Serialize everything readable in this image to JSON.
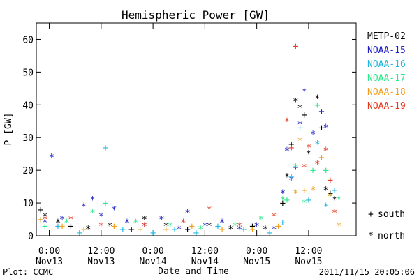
{
  "chart_data": {
    "type": "scatter",
    "title": "Hemispheric Power [GW]",
    "ylabel": "P [GW]",
    "xlabel": "Date and Time",
    "ylim": [
      0,
      65
    ],
    "xlim": [
      "2011-11-12T21:00",
      "2011-11-15T23:00"
    ],
    "y_ticks": [
      "0",
      "10",
      "20",
      "30",
      "40",
      "50",
      "60"
    ],
    "x_ticks": [
      {
        "x": "2011-11-13T00:00",
        "line1": "0:00",
        "line2": "Nov13"
      },
      {
        "x": "2011-11-13T12:00",
        "line1": "12:00",
        "line2": "Nov13"
      },
      {
        "x": "2011-11-14T00:00",
        "line1": "0:00",
        "line2": "Nov14"
      },
      {
        "x": "2011-11-14T12:00",
        "line1": "12:00",
        "line2": "Nov14"
      },
      {
        "x": "2011-11-15T00:00",
        "line1": "0:00",
        "line2": "Nov15"
      },
      {
        "x": "2011-11-15T12:00",
        "line1": "12:00",
        "line2": "Nov15"
      }
    ],
    "marker_legend": [
      {
        "symbol": "+",
        "label": "south"
      },
      {
        "symbol": "*",
        "label": "north"
      }
    ],
    "series": [
      {
        "name": "METP-02",
        "color": "#000000",
        "points": [
          [
            "2011-11-12T22:00",
            8,
            "+"
          ],
          [
            "2011-11-12T23:00",
            6,
            "*"
          ],
          [
            "2011-11-13T02:00",
            4,
            "*"
          ],
          [
            "2011-11-13T05:00",
            3,
            "+"
          ],
          [
            "2011-11-13T09:00",
            2,
            "*"
          ],
          [
            "2011-11-13T14:00",
            3,
            "*"
          ],
          [
            "2011-11-13T19:00",
            2,
            "+"
          ],
          [
            "2011-11-13T22:00",
            5,
            "*"
          ],
          [
            "2011-11-14T03:00",
            3,
            "*"
          ],
          [
            "2011-11-14T08:00",
            2,
            "+"
          ],
          [
            "2011-11-14T13:00",
            3,
            "*"
          ],
          [
            "2011-11-14T18:00",
            2,
            "*"
          ],
          [
            "2011-11-14T23:00",
            3,
            "+"
          ],
          [
            "2011-11-15T02:00",
            2,
            "*"
          ],
          [
            "2011-11-15T06:00",
            10,
            "+"
          ],
          [
            "2011-11-15T07:00",
            18,
            "*"
          ],
          [
            "2011-11-15T08:00",
            28,
            "+"
          ],
          [
            "2011-11-15T09:00",
            41,
            "*"
          ],
          [
            "2011-11-15T10:00",
            39,
            "*"
          ],
          [
            "2011-11-15T11:00",
            37,
            "+"
          ],
          [
            "2011-11-15T12:00",
            25,
            "*"
          ],
          [
            "2011-11-15T14:00",
            42,
            "*"
          ],
          [
            "2011-11-15T15:00",
            33,
            "+"
          ],
          [
            "2011-11-15T16:00",
            14,
            "*"
          ],
          [
            "2011-11-15T17:00",
            13,
            "+"
          ],
          [
            "2011-11-15T18:00",
            11,
            "*"
          ]
        ]
      },
      {
        "name": "NOAA-15",
        "color": "#1f1fc8",
        "points": [
          [
            "2011-11-12T23:00",
            4,
            "*"
          ],
          [
            "2011-11-13T00:30",
            24,
            "*"
          ],
          [
            "2011-11-13T03:00",
            5,
            "*"
          ],
          [
            "2011-11-13T08:00",
            9,
            "*"
          ],
          [
            "2011-11-13T10:00",
            11,
            "*"
          ],
          [
            "2011-11-13T12:00",
            6,
            "*"
          ],
          [
            "2011-11-13T15:00",
            8,
            "*"
          ],
          [
            "2011-11-13T18:00",
            4,
            "*"
          ],
          [
            "2011-11-13T22:00",
            3,
            "*"
          ],
          [
            "2011-11-14T02:00",
            5,
            "*"
          ],
          [
            "2011-11-14T06:00",
            2,
            "*"
          ],
          [
            "2011-11-14T08:00",
            7,
            "*"
          ],
          [
            "2011-11-14T12:00",
            3,
            "*"
          ],
          [
            "2011-11-14T16:00",
            4,
            "*"
          ],
          [
            "2011-11-14T20:00",
            2,
            "*"
          ],
          [
            "2011-11-15T00:00",
            3,
            "*"
          ],
          [
            "2011-11-15T04:00",
            2,
            "*"
          ],
          [
            "2011-11-15T06:00",
            13,
            "*"
          ],
          [
            "2011-11-15T07:00",
            26,
            "*"
          ],
          [
            "2011-11-15T08:00",
            17,
            "*"
          ],
          [
            "2011-11-15T09:00",
            21,
            "+"
          ],
          [
            "2011-11-15T10:00",
            34,
            "*"
          ],
          [
            "2011-11-15T11:00",
            44,
            "*"
          ],
          [
            "2011-11-15T13:00",
            31,
            "*"
          ],
          [
            "2011-11-15T15:00",
            38,
            "+"
          ],
          [
            "2011-11-15T16:00",
            33,
            "*"
          ]
        ]
      },
      {
        "name": "NOAA-16",
        "color": "#1fb8e0",
        "points": [
          [
            "2011-11-12T22:00",
            5,
            "+"
          ],
          [
            "2011-11-13T02:00",
            3,
            "+"
          ],
          [
            "2011-11-13T07:00",
            1,
            "+"
          ],
          [
            "2011-11-13T13:00",
            27,
            "+"
          ],
          [
            "2011-11-13T17:00",
            2,
            "+"
          ],
          [
            "2011-11-14T00:00",
            1,
            "+"
          ],
          [
            "2011-11-14T05:00",
            2,
            "+"
          ],
          [
            "2011-11-14T10:00",
            1,
            "+"
          ],
          [
            "2011-11-14T15:00",
            3,
            "+"
          ],
          [
            "2011-11-14T21:00",
            2,
            "+"
          ],
          [
            "2011-11-15T03:00",
            1,
            "+"
          ],
          [
            "2011-11-15T06:00",
            4,
            "+"
          ],
          [
            "2011-11-15T08:00",
            18,
            "+"
          ],
          [
            "2011-11-15T10:00",
            33,
            "+"
          ],
          [
            "2011-11-15T12:00",
            11,
            "+"
          ],
          [
            "2011-11-15T14:00",
            28,
            "*"
          ],
          [
            "2011-11-15T16:00",
            9,
            "*"
          ],
          [
            "2011-11-15T18:00",
            14,
            "+"
          ]
        ]
      },
      {
        "name": "NOAA-17",
        "color": "#2ee88a",
        "points": [
          [
            "2011-11-12T23:00",
            3,
            "+"
          ],
          [
            "2011-11-13T04:00",
            4,
            "*"
          ],
          [
            "2011-11-13T10:00",
            7,
            "*"
          ],
          [
            "2011-11-13T13:00",
            10,
            "+"
          ],
          [
            "2011-11-13T20:00",
            4,
            "*"
          ],
          [
            "2011-11-14T04:00",
            3,
            "*"
          ],
          [
            "2011-11-14T11:00",
            2,
            "*"
          ],
          [
            "2011-11-14T19:00",
            3,
            "*"
          ],
          [
            "2011-11-15T01:00",
            5,
            "*"
          ],
          [
            "2011-11-15T06:00",
            11,
            "*"
          ],
          [
            "2011-11-15T07:00",
            11,
            "+"
          ],
          [
            "2011-11-15T09:00",
            21,
            "*"
          ],
          [
            "2011-11-15T11:00",
            10,
            "*"
          ],
          [
            "2011-11-15T13:00",
            20,
            "+"
          ],
          [
            "2011-11-15T14:00",
            40,
            "+"
          ],
          [
            "2011-11-15T16:00",
            20,
            "+"
          ],
          [
            "2011-11-15T17:00",
            12,
            "*"
          ],
          [
            "2011-11-15T19:00",
            11,
            "*"
          ]
        ]
      },
      {
        "name": "NOAA-18",
        "color": "#f0a020",
        "points": [
          [
            "2011-11-12T22:00",
            5,
            "+"
          ],
          [
            "2011-11-13T03:00",
            3,
            "+"
          ],
          [
            "2011-11-13T08:00",
            2,
            "+"
          ],
          [
            "2011-11-13T15:00",
            3,
            "+"
          ],
          [
            "2011-11-13T21:00",
            2,
            "+"
          ],
          [
            "2011-11-14T03:00",
            2,
            "+"
          ],
          [
            "2011-11-14T09:00",
            3,
            "+"
          ],
          [
            "2011-11-14T16:00",
            2,
            "+"
          ],
          [
            "2011-11-14T23:00",
            2,
            "+"
          ],
          [
            "2011-11-15T05:00",
            3,
            "+"
          ],
          [
            "2011-11-15T09:00",
            13,
            "*"
          ],
          [
            "2011-11-15T10:00",
            29,
            "*"
          ],
          [
            "2011-11-15T11:00",
            14,
            "+"
          ],
          [
            "2011-11-15T13:00",
            14,
            "*"
          ],
          [
            "2011-11-15T15:00",
            24,
            "+"
          ],
          [
            "2011-11-15T17:00",
            12,
            "*"
          ],
          [
            "2011-11-15T19:00",
            3,
            "*"
          ]
        ]
      },
      {
        "name": "NOAA-19",
        "color": "#e83a20",
        "points": [
          [
            "2011-11-12T23:00",
            5,
            "*"
          ],
          [
            "2011-11-13T05:00",
            5,
            "*"
          ],
          [
            "2011-11-13T12:00",
            3,
            "*"
          ],
          [
            "2011-11-13T22:00",
            3,
            "*"
          ],
          [
            "2011-11-14T07:00",
            4,
            "*"
          ],
          [
            "2011-11-14T13:00",
            8,
            "*"
          ],
          [
            "2011-11-14T20:00",
            3,
            "*"
          ],
          [
            "2011-11-15T04:00",
            6,
            "*"
          ],
          [
            "2011-11-15T07:00",
            35,
            "*"
          ],
          [
            "2011-11-15T08:00",
            27,
            "+"
          ],
          [
            "2011-11-15T09:00",
            58,
            "+"
          ],
          [
            "2011-11-15T11:00",
            21,
            "*"
          ],
          [
            "2011-11-15T12:00",
            27,
            "*"
          ],
          [
            "2011-11-15T14:00",
            22,
            "*"
          ],
          [
            "2011-11-15T16:00",
            26,
            "*"
          ],
          [
            "2011-11-15T17:00",
            17,
            "+"
          ],
          [
            "2011-11-15T18:00",
            7,
            "*"
          ]
        ]
      }
    ]
  },
  "footer": {
    "plot_credit": "Plot: CCMC",
    "timestamp": "2011/11/15 20:05:06"
  }
}
